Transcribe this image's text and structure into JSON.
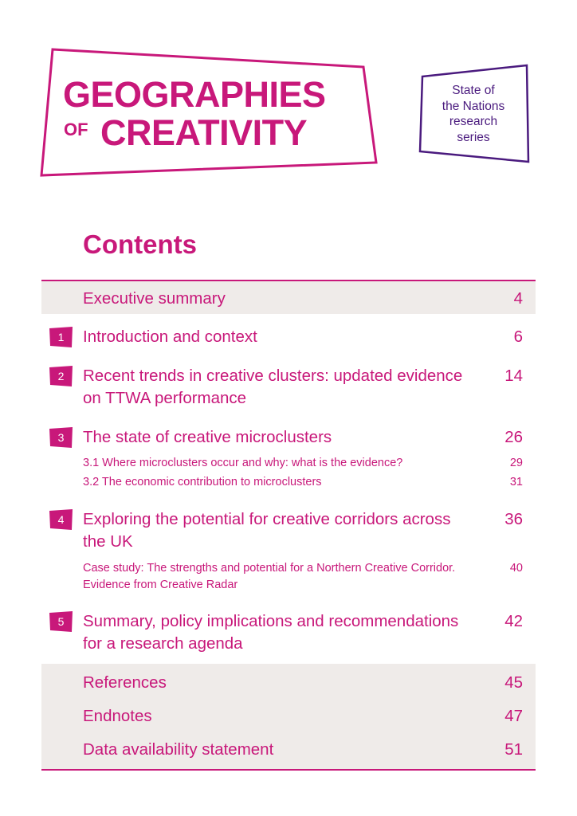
{
  "logo": {
    "line1": "GEOGRAPHIES",
    "of": "OF",
    "line2": "CREATIVITY"
  },
  "series": {
    "lines": [
      "State of",
      "the Nations",
      "research",
      "series"
    ]
  },
  "contents": {
    "title": "Contents",
    "front": [
      {
        "label": "Executive summary",
        "page": "4"
      }
    ],
    "chapters": [
      {
        "num": "1",
        "label": "Introduction and context",
        "page": "6",
        "subsections": []
      },
      {
        "num": "2",
        "label": "Recent trends in creative clusters: updated evidence on TTWA performance",
        "page": "14",
        "subsections": []
      },
      {
        "num": "3",
        "label": "The state of creative microclusters",
        "page": "26",
        "subsections": [
          {
            "label": "3.1 Where microclusters occur and why: what is the evidence?",
            "page": "29"
          },
          {
            "label": "3.2 The economic contribution to microclusters",
            "page": "31"
          }
        ]
      },
      {
        "num": "4",
        "label": "Exploring the potential for creative corridors across the UK",
        "page": "36",
        "subsections": [
          {
            "label": "Case study: The strengths and potential for a Northern Creative Corridor. Evidence from Creative Radar",
            "page": "40"
          }
        ]
      },
      {
        "num": "5",
        "label": "Summary, policy implications and recommendations for a research agenda",
        "page": "42",
        "subsections": []
      }
    ],
    "back": [
      {
        "label": "References",
        "page": "45"
      },
      {
        "label": "Endnotes",
        "page": "47"
      },
      {
        "label": "Data availability statement",
        "page": "51"
      }
    ]
  },
  "colors": {
    "magenta": "#c8187a",
    "purple": "#4a1a7e",
    "band": "#efebe9"
  }
}
